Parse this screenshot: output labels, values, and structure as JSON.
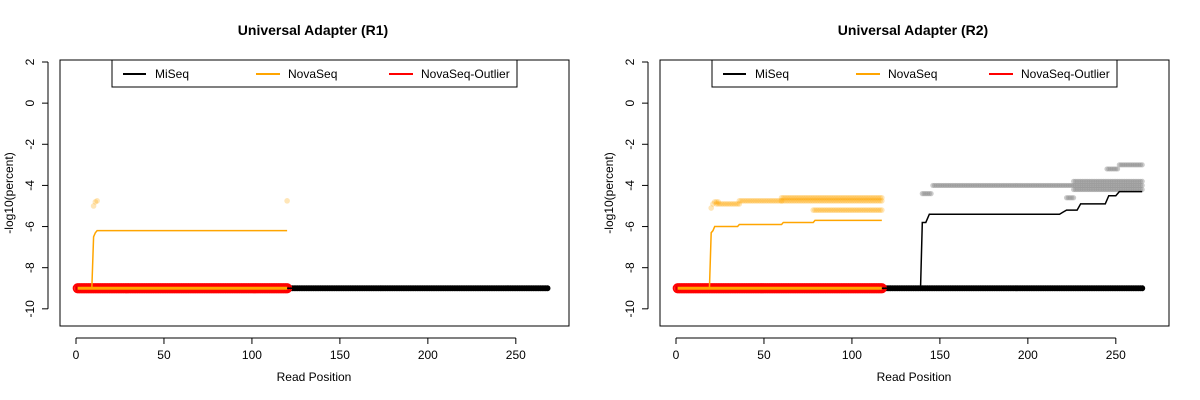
{
  "chart_data": [
    {
      "type": "line",
      "title": "Universal Adapter (R1)",
      "xlabel": "Read Position",
      "ylabel": "-log10(percent)",
      "xlim": [
        0,
        270
      ],
      "ylim": [
        -10.3,
        2.0
      ],
      "xticks": [
        0,
        50,
        100,
        150,
        200,
        250
      ],
      "yticks": [
        2,
        0,
        -2,
        -4,
        -6,
        -8,
        -10
      ],
      "grid": false,
      "legend": {
        "position": "top",
        "entries": [
          {
            "name": "MiSeq",
            "color": "#000000"
          },
          {
            "name": "NovaSeq",
            "color": "#FFA500"
          },
          {
            "name": "NovaSeq-Outlier",
            "color": "#FF0000"
          }
        ]
      },
      "series": [
        {
          "name": "MiSeq",
          "color": "#000000",
          "kind": "line",
          "x": [
            1,
            268
          ],
          "y": [
            -9.0,
            -9.0
          ]
        },
        {
          "name": "MiSeq",
          "color": "#000000",
          "kind": "points",
          "x": [
            1,
            268
          ],
          "y": [
            -9.0,
            -9.0
          ]
        },
        {
          "name": "NovaSeq",
          "color": "#FFA500",
          "kind": "line",
          "x": [
            1,
            9,
            10,
            11,
            12,
            120
          ],
          "y": [
            -9.0,
            -9.0,
            -6.5,
            -6.3,
            -6.2,
            -6.2
          ]
        },
        {
          "name": "NovaSeq",
          "color": "#FFA500",
          "kind": "points",
          "x": [
            10,
            11,
            12,
            120
          ],
          "y": [
            -5.0,
            -4.8,
            -4.75,
            -4.75
          ]
        },
        {
          "name": "NovaSeq-Outlier",
          "color": "#FF0000",
          "kind": "points",
          "x": [
            1,
            120
          ],
          "y": [
            -9.0,
            -9.0
          ]
        }
      ]
    },
    {
      "type": "line",
      "title": "Universal Adapter (R2)",
      "xlabel": "Read Position",
      "ylabel": "-log10(percent)",
      "xlim": [
        0,
        270
      ],
      "ylim": [
        -10.3,
        2.0
      ],
      "xticks": [
        0,
        50,
        100,
        150,
        200,
        250
      ],
      "yticks": [
        2,
        0,
        -2,
        -4,
        -6,
        -8,
        -10
      ],
      "grid": false,
      "legend": {
        "position": "top",
        "entries": [
          {
            "name": "MiSeq",
            "color": "#000000"
          },
          {
            "name": "NovaSeq",
            "color": "#FFA500"
          },
          {
            "name": "NovaSeq-Outlier",
            "color": "#FF0000"
          }
        ]
      },
      "series": [
        {
          "name": "MiSeq",
          "color": "#000000",
          "kind": "line",
          "x": [
            1,
            139,
            140,
            142,
            144,
            146,
            218,
            220,
            222,
            228,
            230,
            244,
            246,
            250,
            252,
            265
          ],
          "y": [
            -9.0,
            -9.0,
            -5.8,
            -5.8,
            -5.4,
            -5.4,
            -5.4,
            -5.3,
            -5.2,
            -5.2,
            -4.9,
            -4.9,
            -4.5,
            -4.5,
            -4.3,
            -4.3
          ]
        },
        {
          "name": "MiSeq",
          "color": "#000000",
          "kind": "points",
          "x": [
            1,
            265
          ],
          "y": [
            -9.0,
            -9.0
          ]
        },
        {
          "name": "MiSeq",
          "color": "#000000",
          "kind": "points",
          "x": [
            140,
            145
          ],
          "y": [
            -4.4,
            -4.4
          ]
        },
        {
          "name": "MiSeq",
          "color": "#000000",
          "kind": "points",
          "x": [
            146,
            265
          ],
          "y": [
            -4.0,
            -4.0
          ]
        },
        {
          "name": "MiSeq",
          "color": "#000000",
          "kind": "points",
          "x": [
            222,
            226
          ],
          "y": [
            -4.6,
            -4.6
          ]
        },
        {
          "name": "MiSeq",
          "color": "#000000",
          "kind": "points",
          "x": [
            226,
            265
          ],
          "y": [
            -3.8,
            -3.8
          ]
        },
        {
          "name": "MiSeq",
          "color": "#000000",
          "kind": "points",
          "x": [
            226,
            265
          ],
          "y": [
            -4.2,
            -4.2
          ]
        },
        {
          "name": "MiSeq",
          "color": "#000000",
          "kind": "points",
          "x": [
            245,
            251
          ],
          "y": [
            -3.2,
            -3.2
          ]
        },
        {
          "name": "MiSeq",
          "color": "#000000",
          "kind": "points",
          "x": [
            252,
            265
          ],
          "y": [
            -3.0,
            -3.0
          ]
        },
        {
          "name": "NovaSeq",
          "color": "#FFA500",
          "kind": "line",
          "x": [
            1,
            19,
            20,
            21,
            22,
            35,
            36,
            60,
            61,
            78,
            79,
            117
          ],
          "y": [
            -9.0,
            -9.0,
            -6.3,
            -6.2,
            -6.0,
            -6.0,
            -5.9,
            -5.9,
            -5.8,
            -5.8,
            -5.7,
            -5.7
          ]
        },
        {
          "name": "NovaSeq",
          "color": "#FFA500",
          "kind": "points",
          "x": [
            20,
            21,
            22,
            23,
            24
          ],
          "y": [
            -5.1,
            -4.9,
            -4.8,
            -4.8,
            -4.8
          ]
        },
        {
          "name": "NovaSeq",
          "color": "#FFA500",
          "kind": "points",
          "x": [
            23,
            36
          ],
          "y": [
            -4.9,
            -4.9
          ]
        },
        {
          "name": "NovaSeq",
          "color": "#FFA500",
          "kind": "points",
          "x": [
            36,
            60
          ],
          "y": [
            -4.75,
            -4.75
          ]
        },
        {
          "name": "NovaSeq",
          "color": "#FFA500",
          "kind": "points",
          "x": [
            60,
            117
          ],
          "y": [
            -4.6,
            -4.6
          ]
        },
        {
          "name": "NovaSeq",
          "color": "#FFA500",
          "kind": "points",
          "x": [
            60,
            117
          ],
          "y": [
            -4.75,
            -4.75
          ]
        },
        {
          "name": "NovaSeq",
          "color": "#FFA500",
          "kind": "points",
          "x": [
            78,
            117
          ],
          "y": [
            -5.2,
            -5.2
          ]
        },
        {
          "name": "NovaSeq-Outlier",
          "color": "#FF0000",
          "kind": "points",
          "x": [
            1,
            117
          ],
          "y": [
            -9.0,
            -9.0
          ]
        }
      ]
    }
  ]
}
